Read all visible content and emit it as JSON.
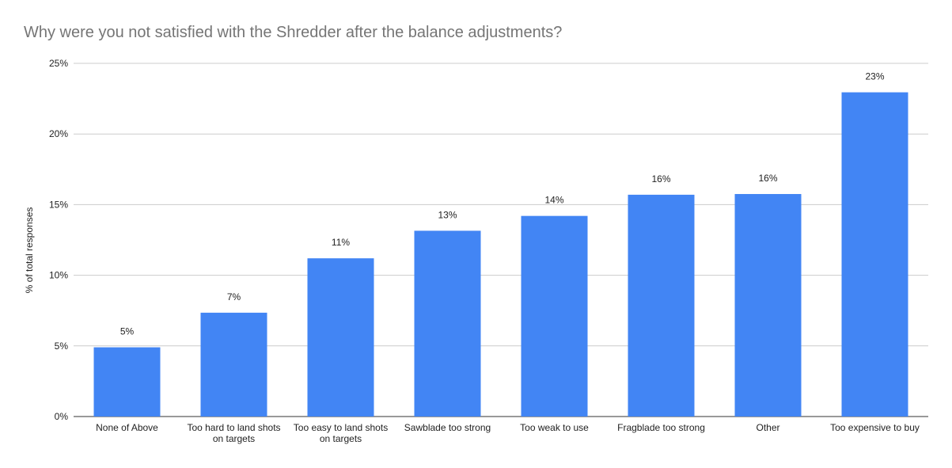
{
  "chart_data": {
    "type": "bar",
    "title": "Why were you not satisfied with the Shredder after the balance adjustments?",
    "xlabel": "",
    "ylabel": "% of total responses",
    "categories": [
      "None of Above",
      "Too hard to land shots on targets",
      "Too easy to land shots on targets",
      "Sawblade too strong",
      "Too weak to use",
      "Fragblade too strong",
      "Other",
      "Too expensive to buy"
    ],
    "category_lines": [
      [
        "None of Above"
      ],
      [
        "Too hard to land shots",
        "on targets"
      ],
      [
        "Too easy to land shots",
        "on targets"
      ],
      [
        "Sawblade too strong"
      ],
      [
        "Too weak to use"
      ],
      [
        "Fragblade too strong"
      ],
      [
        "Other"
      ],
      [
        "Too expensive to buy"
      ]
    ],
    "values": [
      4.9,
      7.35,
      11.2,
      13.15,
      14.2,
      15.7,
      15.75,
      22.95
    ],
    "data_labels": [
      "5%",
      "7%",
      "11%",
      "13%",
      "14%",
      "16%",
      "16%",
      "23%"
    ],
    "ylim": [
      0,
      25
    ],
    "yticks": [
      0,
      5,
      10,
      15,
      20,
      25
    ],
    "ytick_labels": [
      "0%",
      "5%",
      "10%",
      "15%",
      "20%",
      "25%"
    ],
    "grid": true,
    "legend": "none",
    "bar_color": "#4285f4"
  }
}
